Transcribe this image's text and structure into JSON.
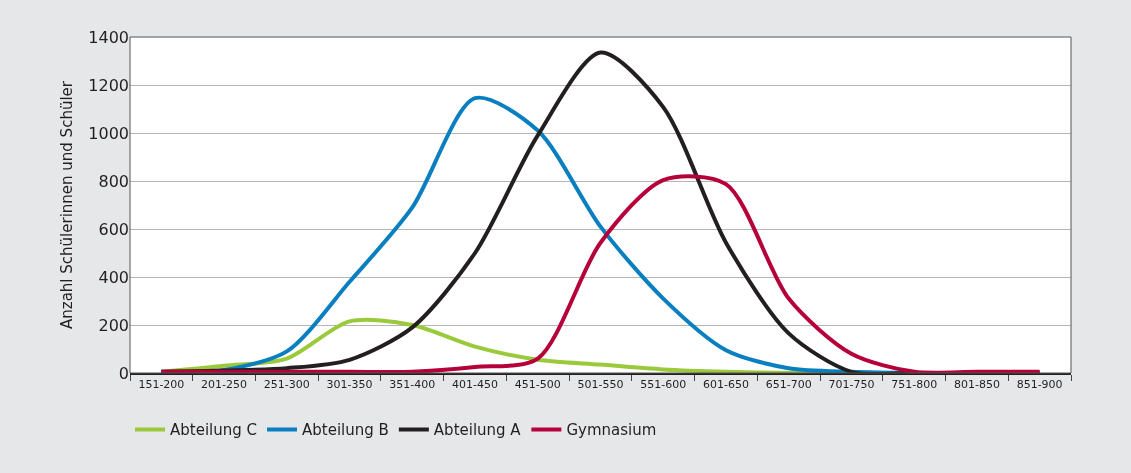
{
  "chart_data": {
    "type": "line",
    "ylabel": "Anzahl Schülerinnen und Schüler",
    "categories": [
      "151-200",
      "201-250",
      "251-300",
      "301-350",
      "351-400",
      "401-450",
      "451-500",
      "501-550",
      "551-600",
      "601-650",
      "651-700",
      "701-750",
      "751-800",
      "801-850",
      "851-900"
    ],
    "series": [
      {
        "name": "Abteilung C",
        "color": "#9bc93c",
        "values": [
          5,
          30,
          60,
          215,
          200,
          110,
          55,
          35,
          15,
          5,
          0,
          0,
          null,
          null,
          null
        ]
      },
      {
        "name": "Abteilung B",
        "color": "#0a7fc0",
        "values": [
          0,
          13,
          90,
          380,
          690,
          1145,
          1010,
          610,
          310,
          95,
          20,
          5,
          0,
          0,
          0
        ]
      },
      {
        "name": "Abteilung A",
        "color": "#231f20",
        "values": [
          5,
          10,
          20,
          55,
          190,
          500,
          990,
          1335,
          1108,
          543,
          165,
          5,
          0,
          0,
          0
        ]
      },
      {
        "name": "Gymnasium",
        "color": "#b5003a",
        "values": [
          5,
          5,
          5,
          5,
          5,
          25,
          60,
          543,
          804,
          787,
          310,
          80,
          5,
          5,
          5
        ]
      }
    ],
    "ylim": [
      0,
      1400
    ],
    "yticks": [
      0,
      200,
      400,
      600,
      800,
      1000,
      1200,
      1400
    ],
    "grid": "y",
    "legend": "bottom",
    "line_style": "solid",
    "marker": "none"
  }
}
